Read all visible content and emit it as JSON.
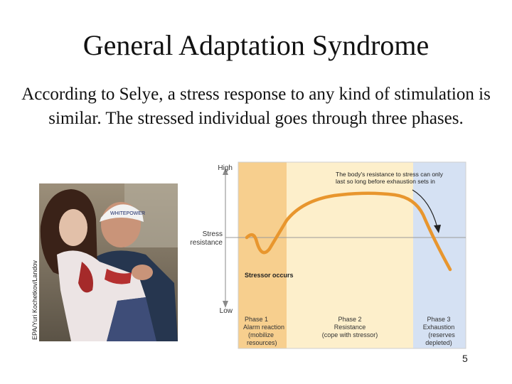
{
  "slide": {
    "title": "General Adaptation Syndrome",
    "body": "According to Selye, a stress response to any kind of stimulation is similar. The stressed individual goes through three phases.",
    "photo_credit": "EPA/Yuri Kochetkov/Landov",
    "slide_number": "5",
    "photo": {
      "cap_text": "WHITEPOWER"
    }
  },
  "chart_data": {
    "type": "line",
    "ylabel_top": "High",
    "ylabel_bottom": "Low",
    "axis_label_line1": "Stress",
    "axis_label_line2": "resistance",
    "annotation_line1": "The body's resistance to stress can only",
    "annotation_line2": "last so long before exhaustion sets in",
    "stressor_label": "Stressor occurs",
    "phases": [
      {
        "name": "Phase 1",
        "line1": "Alarm reaction",
        "line2": "(mobilize",
        "line3": "resources)",
        "color": "#f7cf8e"
      },
      {
        "name": "Phase 2",
        "line1": "Resistance",
        "line2": "(cope with stressor)",
        "line3": "",
        "color": "#fdefcb"
      },
      {
        "name": "Phase 3",
        "line1": "Exhaustion",
        "line2": "(reserves",
        "line3": "depleted)",
        "color": "#d5e1f3"
      }
    ],
    "curve_color": "#e8962e"
  }
}
